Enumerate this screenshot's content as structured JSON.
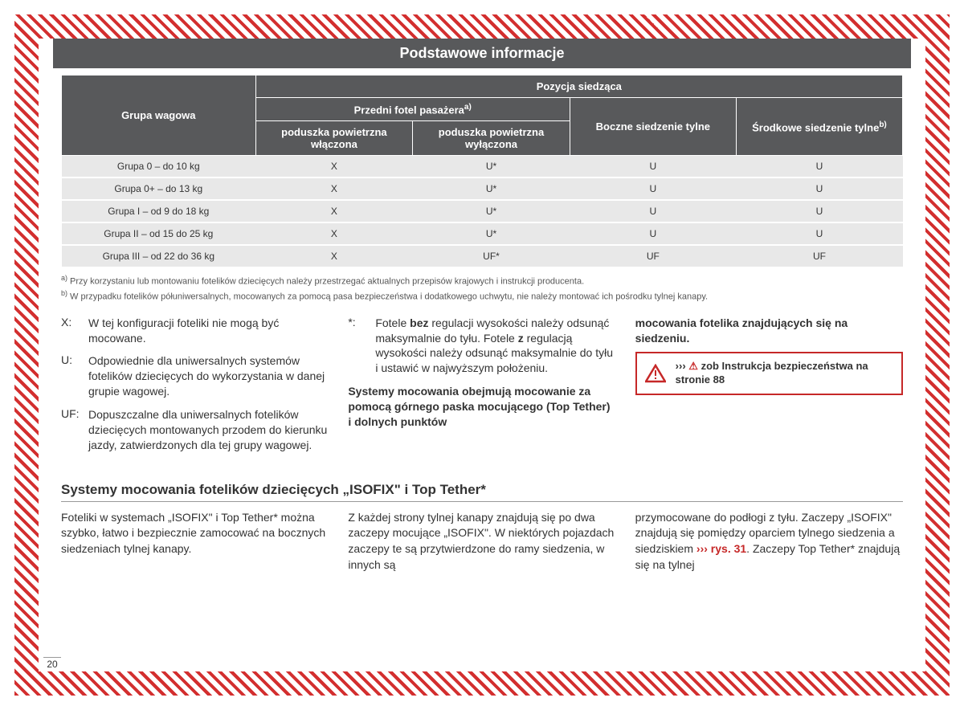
{
  "title": "Podstawowe informacje",
  "table": {
    "col_group": "Grupa wagowa",
    "col_pos": "Pozycja siedząca",
    "col_front": "Przedni fotel pasażera",
    "sup_a": "a)",
    "col_air_on": "poduszka powietrzna włączona",
    "col_air_off": "poduszka powietrzna wyłączona",
    "col_side": "Boczne siedzenie tylne",
    "col_mid": "Środkowe siedzenie tylne",
    "sup_b": "b)",
    "rows": [
      {
        "g": "Grupa 0 – do 10 kg",
        "c1": "X",
        "c2": "U*",
        "c3": "U",
        "c4": "U"
      },
      {
        "g": "Grupa 0+ – do 13 kg",
        "c1": "X",
        "c2": "U*",
        "c3": "U",
        "c4": "U"
      },
      {
        "g": "Grupa I – od 9 do 18 kg",
        "c1": "X",
        "c2": "U*",
        "c3": "U",
        "c4": "U"
      },
      {
        "g": "Grupa II – od 15 do 25 kg",
        "c1": "X",
        "c2": "U*",
        "c3": "U",
        "c4": "U"
      },
      {
        "g": "Grupa III – od 22 do 36 kg",
        "c1": "X",
        "c2": "UF*",
        "c3": "UF",
        "c4": "UF"
      }
    ]
  },
  "footnotes": {
    "a": "Przy korzystaniu lub montowaniu fotelików dziecięcych należy przestrzegać aktualnych przepisów krajowych i instrukcji producenta.",
    "b": "W przypadku fotelików półuniwersalnych, mocowanych za pomocą pasa bezpieczeństwa i dodatkowego uchwytu, nie należy montować ich pośrodku tylnej kanapy."
  },
  "defs": {
    "x_key": "X:",
    "x_text": "W tej konfiguracji foteliki nie mogą być mocowane.",
    "u_key": "U:",
    "u_text": "Odpowiednie dla uniwersalnych systemów fotelików dziecięcych do wykorzystania w danej grupie wagowej.",
    "uf_key": "UF:",
    "uf_text": "Dopuszczalne dla uniwersalnych fotelików dziecięcych montowanych przodem do kierunku jazdy, zatwierdzonych dla tej grupy wagowej.",
    "star_key": "*:",
    "star_pre": "Fotele ",
    "star_bold1": "bez",
    "star_mid": " regulacji wysokości należy odsunąć maksymalnie do tyłu. Fotele ",
    "star_bold2": "z",
    "star_end": " regulacją wysokości należy odsunąć maksymalnie do tyłu i ustawić w najwyższym położeniu.",
    "sys_bold": "Systemy mocowania obejmują mocowanie za pomocą górnego paska mocującego (Top Tether) i dolnych punktów",
    "col3_bold": "mocowania fotelika znajdujących się na siedzeniu."
  },
  "warn": {
    "chevrons": "›››",
    "tri": "⚠",
    "text": "zob Instrukcja bezpieczeństwa na stronie 88"
  },
  "section_heading": "Systemy mocowania fotelików dziecięcych „ISOFIX\" i Top Tether*",
  "body": {
    "c1": "Foteliki w systemach „ISOFIX\" i Top Tether* można szybko, łatwo i bezpiecznie zamocować na bocznych siedzeniach tylnej kanapy.",
    "c2": "Z każdej strony tylnej kanapy znajdują się po dwa zaczepy mocujące „ISOFIX\". W niektórych pojazdach zaczepy te są przytwierdzone do ramy siedzenia, w innych są",
    "c3_pre": "przymocowane do podłogi z tyłu. Zaczepy „ISOFIX\" znajdują się pomiędzy oparciem tylnego siedzenia a siedziskiem ",
    "c3_link_chev": "›››",
    "c3_link": " rys. 31",
    "c3_post": ". Zaczepy Top Tether* znajdują się na tylnej"
  },
  "page_number": "20"
}
